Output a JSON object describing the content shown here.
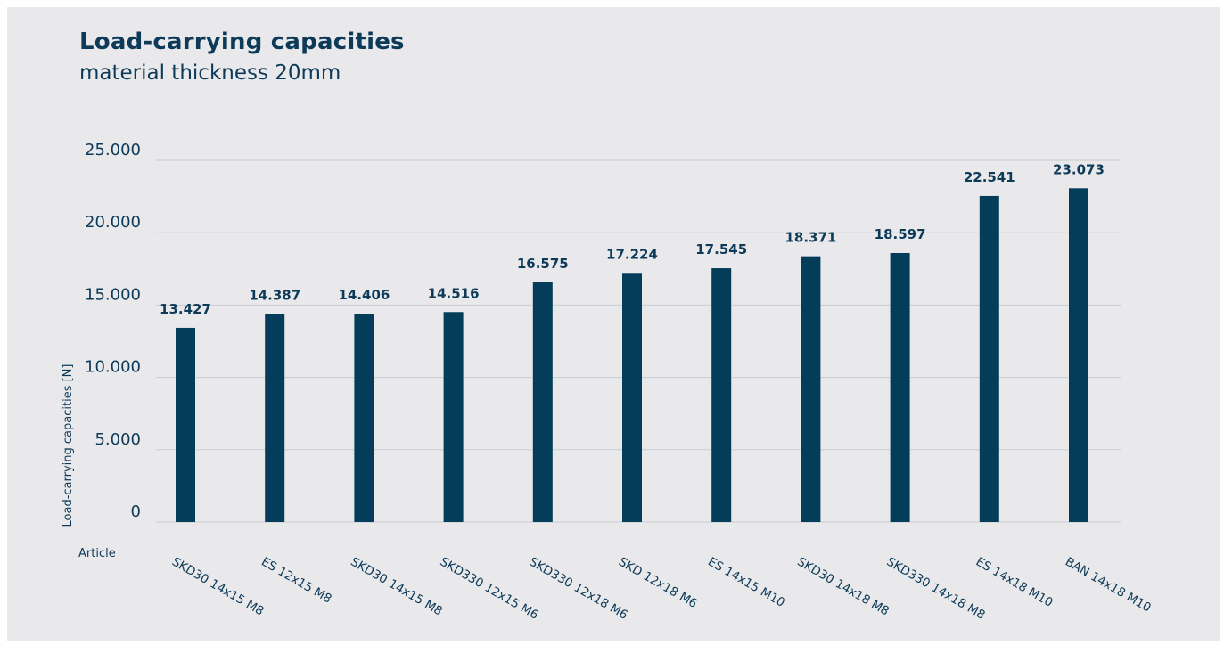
{
  "header": {
    "title": "Load-carrying capacities",
    "subtitle": "material thickness 20mm"
  },
  "colors": {
    "bar": "#033d5a",
    "label": "#0d3a58",
    "grid": "#c9ccd1",
    "background": "#e9e9eb"
  },
  "chart_data": {
    "type": "bar",
    "title": "Load-carrying capacities",
    "subtitle": "material thickness 20mm",
    "xlabel": "Article",
    "ylabel": "Load-carrying capacities [N]",
    "ylim": [
      0,
      25000
    ],
    "yticks": [
      0,
      5000,
      10000,
      15000,
      20000,
      25000
    ],
    "ytick_labels": [
      "0",
      "5.000",
      "10.000",
      "15.000",
      "20.000",
      "25.000"
    ],
    "grid": true,
    "categories": [
      "SKD30 14x15 M8",
      "ES 12x15 M8",
      "SKD30 14x15 M8",
      "SKD330 12x15 M6",
      "SKD330 12x18 M6",
      "SKD 12x18 M6",
      "ES 14x15 M10",
      "SKD30 14x18 M8",
      "SKD330 14x18 M8",
      "ES 14x18 M10",
      "BAN 14x18 M10"
    ],
    "values": [
      13427,
      14387,
      14406,
      14516,
      16575,
      17224,
      17545,
      18371,
      18597,
      22541,
      23073
    ],
    "value_labels": [
      "13.427",
      "14.387",
      "14.406",
      "14.516",
      "16.575",
      "17.224",
      "17.545",
      "18.371",
      "18.597",
      "22.541",
      "23.073"
    ]
  }
}
